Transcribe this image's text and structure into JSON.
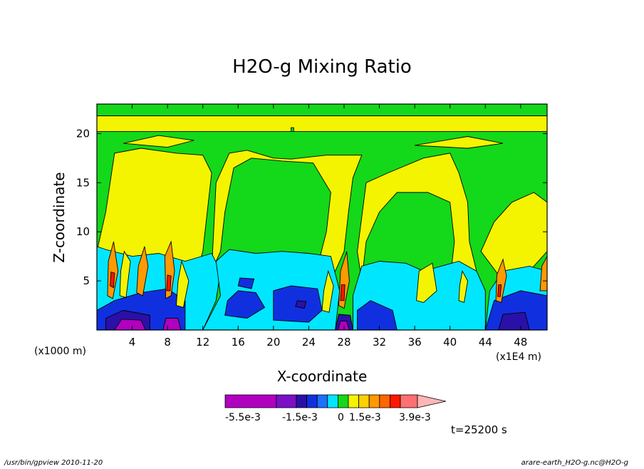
{
  "chart_data": {
    "type": "heatmap",
    "title": "H2O-g Mixing Ratio",
    "xlabel": "X-coordinate",
    "ylabel": "Z-coordinate",
    "xlim": [
      0,
      51
    ],
    "ylim": [
      0,
      23
    ],
    "x_ticks": [
      4,
      8,
      12,
      16,
      20,
      24,
      28,
      32,
      36,
      40,
      44,
      48
    ],
    "y_ticks": [
      5,
      10,
      15,
      20
    ],
    "x_unit_left": "(x1000 m)",
    "x_unit_right": "(x1E4 m)",
    "colorbar": {
      "colors": [
        "#b000c0",
        "#7a10c8",
        "#2a10a8",
        "#1030e0",
        "#1a70ff",
        "#00e6ff",
        "#14d81a",
        "#f4f400",
        "#ffd000",
        "#ff9900",
        "#ff6600",
        "#ff1800",
        "#ff7070",
        "#ffb6b6"
      ],
      "labels": [
        "-5.5e-3",
        "-1.5e-3",
        "0",
        "1.5e-3",
        "3.9e-3"
      ]
    },
    "regions": [
      {
        "layer": "green",
        "points": [
          [
            0,
            0
          ],
          [
            51,
            0
          ],
          [
            51,
            23
          ],
          [
            0,
            23
          ]
        ]
      },
      {
        "layer": "yellow",
        "points": [
          [
            0,
            8
          ],
          [
            1,
            12
          ],
          [
            1.5,
            15
          ],
          [
            2,
            18
          ],
          [
            5,
            18.5
          ],
          [
            9,
            18
          ],
          [
            12,
            17.8
          ],
          [
            13,
            16
          ],
          [
            12.5,
            12
          ],
          [
            12,
            8
          ],
          [
            11,
            5
          ],
          [
            9,
            4
          ],
          [
            6,
            3
          ],
          [
            3,
            3
          ],
          [
            0,
            3
          ]
        ]
      },
      {
        "layer": "yellow",
        "points": [
          [
            13.5,
            15
          ],
          [
            15,
            18
          ],
          [
            17,
            18.3
          ],
          [
            20,
            17.5
          ],
          [
            22,
            17.4
          ],
          [
            26,
            17.8
          ],
          [
            30,
            17.8
          ],
          [
            29,
            15.5
          ],
          [
            28.5,
            12
          ],
          [
            28,
            8
          ],
          [
            27,
            6
          ],
          [
            25,
            6.5
          ],
          [
            26,
            10
          ],
          [
            26.5,
            14
          ],
          [
            24.5,
            17
          ],
          [
            21,
            17.2
          ],
          [
            17.5,
            17.5
          ],
          [
            15.5,
            16.5
          ],
          [
            14.5,
            12
          ],
          [
            14,
            8
          ],
          [
            13,
            6
          ]
        ]
      },
      {
        "layer": "yellow",
        "points": [
          [
            30.5,
            15
          ],
          [
            33,
            16
          ],
          [
            37,
            17.5
          ],
          [
            40,
            18
          ],
          [
            41,
            16
          ],
          [
            42,
            13
          ],
          [
            42.2,
            9
          ],
          [
            43,
            6
          ],
          [
            42,
            4
          ],
          [
            40,
            5
          ],
          [
            40.5,
            9
          ],
          [
            40,
            13
          ],
          [
            37.5,
            14
          ],
          [
            34,
            14
          ],
          [
            32,
            12
          ],
          [
            30.5,
            9
          ],
          [
            30,
            5
          ],
          [
            29.5,
            8
          ]
        ]
      },
      {
        "layer": "yellow",
        "points": [
          [
            43.5,
            8
          ],
          [
            45,
            11
          ],
          [
            47,
            13
          ],
          [
            49.5,
            14
          ],
          [
            51,
            13
          ],
          [
            51,
            8
          ],
          [
            49,
            6
          ],
          [
            46,
            5
          ]
        ]
      },
      {
        "layer": "yellow",
        "points": [
          [
            0,
            20.2
          ],
          [
            51,
            20.2
          ],
          [
            51,
            21.8
          ],
          [
            0,
            21.8
          ]
        ]
      },
      {
        "layer": "yellow",
        "points": [
          [
            3,
            19
          ],
          [
            8,
            18.6
          ],
          [
            11,
            19.3
          ],
          [
            7,
            19.8
          ]
        ]
      },
      {
        "layer": "yellow",
        "points": [
          [
            36,
            18.8
          ],
          [
            42,
            18.5
          ],
          [
            46,
            19
          ],
          [
            42,
            19.7
          ]
        ]
      },
      {
        "layer": "cyan",
        "points": [
          [
            0,
            0
          ],
          [
            12,
            0
          ],
          [
            13.5,
            3
          ],
          [
            14,
            6
          ],
          [
            13,
            7.8
          ],
          [
            10,
            7
          ],
          [
            7,
            7.8
          ],
          [
            4,
            7.5
          ],
          [
            1,
            8.2
          ],
          [
            0,
            8.5
          ]
        ]
      },
      {
        "layer": "cyan",
        "points": [
          [
            12,
            0
          ],
          [
            27,
            0
          ],
          [
            27.5,
            4
          ],
          [
            26.5,
            7.5
          ],
          [
            24,
            7.8
          ],
          [
            21,
            8
          ],
          [
            18,
            7.8
          ],
          [
            15,
            8.2
          ],
          [
            13.5,
            7
          ],
          [
            14,
            3.5
          ]
        ]
      },
      {
        "layer": "cyan",
        "points": [
          [
            29,
            0
          ],
          [
            44,
            0
          ],
          [
            44,
            4
          ],
          [
            43,
            6
          ],
          [
            41,
            7
          ],
          [
            39,
            6.5
          ],
          [
            37,
            6
          ],
          [
            35,
            6.8
          ],
          [
            32,
            7
          ],
          [
            30,
            6.5
          ],
          [
            29,
            3.5
          ]
        ]
      },
      {
        "layer": "cyan",
        "points": [
          [
            44,
            0
          ],
          [
            51,
            0
          ],
          [
            51,
            6
          ],
          [
            49,
            6.5
          ],
          [
            46,
            6
          ],
          [
            44.5,
            4
          ]
        ]
      },
      {
        "layer": "blue",
        "points": [
          [
            14.5,
            1.5
          ],
          [
            17,
            1.2
          ],
          [
            19,
            2.3
          ],
          [
            18,
            3.8
          ],
          [
            16,
            4
          ],
          [
            14.8,
            3
          ]
        ]
      },
      {
        "layer": "blue",
        "points": [
          [
            20,
            1
          ],
          [
            24,
            0.8
          ],
          [
            25.5,
            2
          ],
          [
            25,
            4.2
          ],
          [
            22,
            4.5
          ],
          [
            20,
            4
          ]
        ]
      },
      {
        "layer": "blue",
        "points": [
          [
            16,
            4.5
          ],
          [
            17.5,
            4.2
          ],
          [
            17.8,
            5.2
          ],
          [
            16.2,
            5.3
          ]
        ]
      },
      {
        "layer": "blue",
        "points": [
          [
            0,
            0
          ],
          [
            10,
            0
          ],
          [
            10,
            3
          ],
          [
            8,
            4.2
          ],
          [
            5,
            3.8
          ],
          [
            2,
            3
          ],
          [
            0,
            2
          ]
        ]
      },
      {
        "layer": "blue",
        "points": [
          [
            29.5,
            0
          ],
          [
            34,
            0
          ],
          [
            33.5,
            2
          ],
          [
            31,
            3
          ],
          [
            29.5,
            2
          ]
        ]
      },
      {
        "layer": "blue",
        "points": [
          [
            44,
            0
          ],
          [
            51,
            0
          ],
          [
            51,
            3.5
          ],
          [
            48,
            4
          ],
          [
            45,
            3
          ]
        ]
      },
      {
        "layer": "darkblue",
        "points": [
          [
            22.5,
            2.4
          ],
          [
            23.5,
            2.2
          ],
          [
            23.7,
            2.9
          ],
          [
            22.7,
            3
          ]
        ]
      },
      {
        "layer": "darkblue",
        "points": [
          [
            1,
            0
          ],
          [
            6,
            0
          ],
          [
            6,
            1.5
          ],
          [
            3,
            2
          ],
          [
            1,
            1.2
          ]
        ]
      },
      {
        "layer": "darkblue",
        "points": [
          [
            27,
            0
          ],
          [
            29,
            0
          ],
          [
            28.7,
            1.5
          ],
          [
            27.4,
            1.6
          ]
        ]
      },
      {
        "layer": "darkblue",
        "points": [
          [
            45.5,
            0
          ],
          [
            49,
            0
          ],
          [
            48.5,
            1.8
          ],
          [
            46,
            1.6
          ]
        ]
      },
      {
        "layer": "purple",
        "points": [
          [
            2,
            0
          ],
          [
            5.5,
            0
          ],
          [
            5,
            1
          ],
          [
            2.8,
            1.1
          ]
        ]
      },
      {
        "layer": "purple",
        "points": [
          [
            7.5,
            0
          ],
          [
            9.5,
            0
          ],
          [
            9.2,
            1.2
          ],
          [
            7.8,
            1.2
          ]
        ]
      },
      {
        "layer": "purple",
        "points": [
          [
            27.3,
            0
          ],
          [
            28.6,
            0
          ],
          [
            28.3,
            0.9
          ],
          [
            27.6,
            0.9
          ]
        ]
      },
      {
        "layer": "orange",
        "points": [
          [
            1.2,
            3.5
          ],
          [
            1.8,
            3.2
          ],
          [
            2.4,
            6
          ],
          [
            1.9,
            9
          ],
          [
            1.3,
            7
          ]
        ]
      },
      {
        "layer": "orange",
        "points": [
          [
            4.5,
            3.8
          ],
          [
            5.2,
            3.5
          ],
          [
            5.8,
            6.5
          ],
          [
            5.4,
            8.5
          ],
          [
            4.7,
            6.5
          ]
        ]
      },
      {
        "layer": "orange",
        "points": [
          [
            7.8,
            3.2
          ],
          [
            8.4,
            3.5
          ],
          [
            8.8,
            6
          ],
          [
            8.4,
            9
          ],
          [
            7.7,
            7.5
          ]
        ]
      },
      {
        "layer": "orange",
        "points": [
          [
            27.4,
            2.5
          ],
          [
            28,
            2.2
          ],
          [
            28.6,
            5
          ],
          [
            28.3,
            8
          ],
          [
            27.6,
            6
          ]
        ]
      },
      {
        "layer": "orange",
        "points": [
          [
            45.2,
            3
          ],
          [
            45.8,
            2.8
          ],
          [
            46.4,
            5.5
          ],
          [
            46,
            7.2
          ],
          [
            45.3,
            5.6
          ]
        ]
      },
      {
        "layer": "orange",
        "points": [
          [
            50.2,
            4
          ],
          [
            51,
            4
          ],
          [
            51,
            7.5
          ],
          [
            50.4,
            6.5
          ]
        ]
      },
      {
        "layer": "orange",
        "points": [
          [
            37,
            4
          ],
          [
            37.6,
            4.2
          ],
          [
            37.9,
            6.3
          ],
          [
            37.2,
            6.2
          ]
        ]
      },
      {
        "layer": "red",
        "points": [
          [
            1.5,
            4.5
          ],
          [
            1.9,
            4.3
          ],
          [
            2,
            5.8
          ],
          [
            1.6,
            5.9
          ]
        ]
      },
      {
        "layer": "red",
        "points": [
          [
            7.9,
            4
          ],
          [
            8.3,
            4
          ],
          [
            8.4,
            5.5
          ],
          [
            8,
            5.6
          ]
        ]
      },
      {
        "layer": "red",
        "points": [
          [
            27.6,
            3
          ],
          [
            28,
            3
          ],
          [
            28.1,
            4.6
          ],
          [
            27.7,
            4.6
          ]
        ]
      },
      {
        "layer": "red",
        "points": [
          [
            45.4,
            3.4
          ],
          [
            45.7,
            3.4
          ],
          [
            45.8,
            4.6
          ],
          [
            45.5,
            4.6
          ]
        ]
      },
      {
        "layer": "yellow",
        "points": [
          [
            2.6,
            3.5
          ],
          [
            3.3,
            3.3
          ],
          [
            3.8,
            7
          ],
          [
            3.1,
            8
          ],
          [
            2.7,
            6
          ]
        ]
      },
      {
        "layer": "yellow",
        "points": [
          [
            9,
            2.5
          ],
          [
            9.8,
            2.3
          ],
          [
            10.4,
            5
          ],
          [
            9.6,
            7
          ],
          [
            9.2,
            5
          ]
        ]
      },
      {
        "layer": "yellow",
        "points": [
          [
            25.5,
            2
          ],
          [
            26.3,
            1.8
          ],
          [
            26.8,
            4.5
          ],
          [
            26.2,
            6
          ],
          [
            25.7,
            4
          ]
        ]
      },
      {
        "layer": "yellow",
        "points": [
          [
            36.2,
            3
          ],
          [
            37,
            2.8
          ],
          [
            38.5,
            4
          ],
          [
            38,
            6.8
          ],
          [
            36.5,
            6
          ]
        ]
      },
      {
        "layer": "yellow",
        "points": [
          [
            41,
            3
          ],
          [
            41.6,
            2.8
          ],
          [
            42,
            5
          ],
          [
            41.4,
            6
          ],
          [
            41.1,
            4.5
          ]
        ]
      },
      {
        "layer": "green",
        "points": [
          [
            22,
            20.2
          ],
          [
            22.3,
            20.2
          ],
          [
            22.3,
            20.6
          ],
          [
            22,
            20.6
          ]
        ]
      }
    ],
    "time_label": "t=25200 s",
    "footer_left": "/usr/bin/gpview   2010-11-20",
    "footer_right": "arare-earth_H2O-g.nc@H2O-g"
  }
}
